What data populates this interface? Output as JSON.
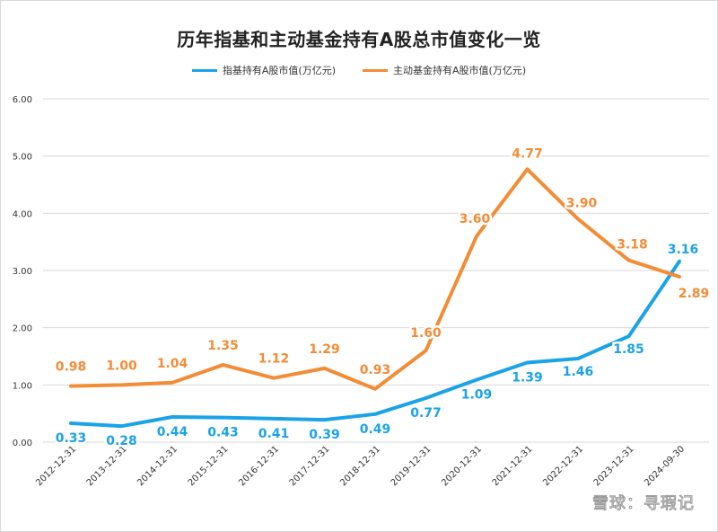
{
  "chart_data": {
    "type": "line",
    "title": "历年指基和主动基金持有A股总市值变化一览",
    "x": [
      "2012-12-31",
      "2013-12-31",
      "2014-12-31",
      "2015-12-31",
      "2016-12-31",
      "2017-12-31",
      "2018-12-31",
      "2019-12-31",
      "2020-12-31",
      "2021-12-31",
      "2022-12-31",
      "2023-12-31",
      "2024-09-30"
    ],
    "series": [
      {
        "name": "指基持有A股市值(万亿元)",
        "color": "#1aa3e6",
        "values": [
          0.33,
          0.28,
          0.44,
          0.43,
          0.41,
          0.39,
          0.49,
          0.77,
          1.09,
          1.39,
          1.46,
          1.85,
          3.16
        ],
        "labels": [
          "0.33",
          "0.28",
          "0.44",
          "0.43",
          "0.41",
          "0.39",
          "0.49",
          "0.77",
          "1.09",
          "1.39",
          "1.46",
          "1.85",
          "3.16"
        ]
      },
      {
        "name": "主动基金持有A股市值(万亿元)",
        "color": "#f28c36",
        "values": [
          0.98,
          1.0,
          1.04,
          1.35,
          1.12,
          1.29,
          0.93,
          1.6,
          3.6,
          4.77,
          3.9,
          3.18,
          2.89
        ],
        "labels": [
          "0.98",
          "1.00",
          "1.04",
          "1.35",
          "1.12",
          "1.29",
          "0.93",
          "1.60",
          "3.60",
          "4.77",
          "3.90",
          "3.18",
          "2.89"
        ]
      }
    ],
    "yticks": [
      "0.00",
      "1.00",
      "2.00",
      "3.00",
      "4.00",
      "5.00",
      "6.00"
    ],
    "ylim": [
      0,
      6
    ],
    "grid": true,
    "legend": "top-center"
  },
  "watermark": "雪球：寻瑕记"
}
